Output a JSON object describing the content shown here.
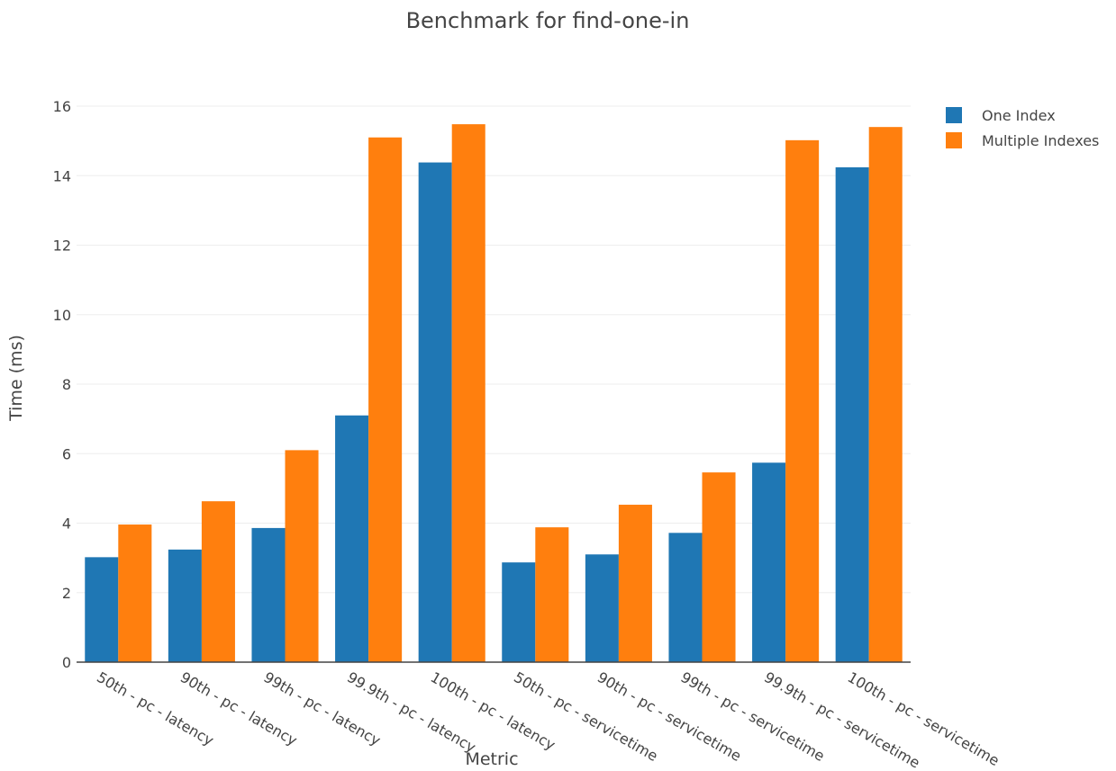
{
  "chart_data": {
    "type": "bar",
    "title": "Benchmark for find-one-in",
    "xlabel": "Metric",
    "ylabel": "Time (ms)",
    "ylim": [
      0,
      16
    ],
    "yticks": [
      0,
      2,
      4,
      6,
      8,
      10,
      12,
      14,
      16
    ],
    "grid": true,
    "legend_position": "top-right",
    "categories": [
      "50th - pc - latency",
      "90th - pc - latency",
      "99th - pc - latency",
      "99.9th - pc - latency",
      "100th - pc - latency",
      "50th - pc - servicetime",
      "90th - pc - servicetime",
      "99th - pc - servicetime",
      "99.9th - pc - servicetime",
      "100th - pc - servicetime"
    ],
    "series": [
      {
        "name": "One Index",
        "color": "#1f77b4",
        "values": [
          3.02,
          3.24,
          3.86,
          7.1,
          14.38,
          2.87,
          3.1,
          3.72,
          5.74,
          14.24
        ]
      },
      {
        "name": "Multiple Indexes",
        "color": "#ff7f0e",
        "values": [
          3.96,
          4.63,
          6.1,
          15.1,
          15.48,
          3.88,
          4.53,
          5.46,
          15.02,
          15.4
        ]
      }
    ]
  }
}
